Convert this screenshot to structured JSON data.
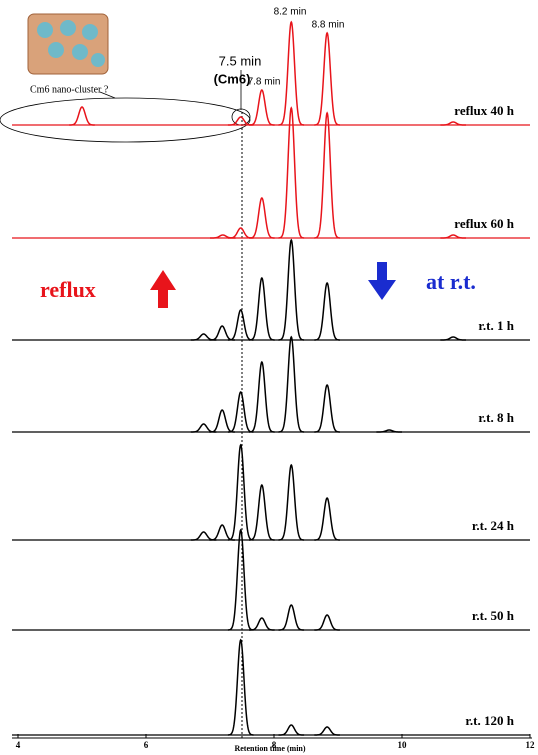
{
  "chart_data": {
    "type": "chromatogram",
    "xlabel": "Retention time (min)",
    "xlim": [
      4,
      12
    ],
    "xticks": [
      4,
      6,
      8,
      10,
      12
    ],
    "annotations": {
      "p82": "8.2 min",
      "p88": "8.8 min",
      "p78": "7.8 min",
      "p75": "7.5 min",
      "cm6": "(Cm6)",
      "cluster": "Cm6 nano-cluster ?",
      "reflux": "reflux",
      "rt": "at r.t."
    },
    "series": [
      {
        "name": "reflux 40 h",
        "color": "#e8141b",
        "x": [
          5.0,
          7.48,
          7.81,
          8.27,
          8.83,
          10.8
        ],
        "values": [
          18,
          8,
          35,
          103,
          92,
          3
        ]
      },
      {
        "name": "reflux 60 h",
        "color": "#e8141b",
        "x": [
          7.2,
          7.48,
          7.81,
          8.27,
          8.83,
          10.8
        ],
        "values": [
          3,
          10,
          40,
          130,
          125,
          3
        ]
      },
      {
        "name": "r.t. 1 h",
        "color": "#000000",
        "x": [
          6.9,
          7.19,
          7.48,
          7.81,
          8.27,
          8.83,
          10.8
        ],
        "values": [
          6,
          14,
          30,
          62,
          100,
          57,
          3
        ]
      },
      {
        "name": "r.t. 8 h",
        "color": "#000000",
        "x": [
          6.9,
          7.19,
          7.48,
          7.81,
          8.27,
          8.83,
          9.8
        ],
        "values": [
          8,
          22,
          40,
          70,
          95,
          47,
          2
        ]
      },
      {
        "name": "r.t. 24 h",
        "color": "#000000",
        "x": [
          6.9,
          7.19,
          7.48,
          7.81,
          8.27,
          8.83
        ],
        "values": [
          8,
          15,
          95,
          55,
          75,
          42
        ]
      },
      {
        "name": "r.t. 50 h",
        "color": "#000000",
        "x": [
          7.48,
          7.81,
          8.27,
          8.83
        ],
        "values": [
          100,
          12,
          25,
          15
        ]
      },
      {
        "name": "r.t. 120 h",
        "color": "#000000",
        "x": [
          7.48,
          8.27,
          8.83
        ],
        "values": [
          95,
          10,
          8
        ]
      }
    ]
  }
}
